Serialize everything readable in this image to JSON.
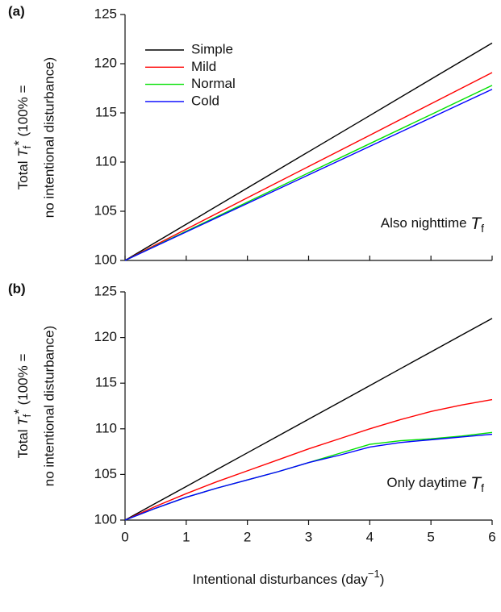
{
  "chart_data": [
    {
      "type": "line",
      "panel": "(a)",
      "ylabel": {
        "line1": [
          "Total ",
          "T",
          "f",
          "*",
          " (100% ="
        ],
        "line2": "no intentional disturbance)"
      },
      "annotation": [
        "Also nighttime ",
        "T",
        "f"
      ],
      "x": [
        0,
        1,
        2,
        3,
        4,
        5,
        6
      ],
      "series": [
        {
          "name": "Simple",
          "color": "#000000",
          "values": [
            100,
            103.68,
            107.37,
            111.05,
            114.73,
            118.42,
            122.1
          ]
        },
        {
          "name": "Mild",
          "color": "#ff0000",
          "values": [
            100,
            103.18,
            106.37,
            109.55,
            112.73,
            115.92,
            119.1
          ]
        },
        {
          "name": "Normal",
          "color": "#00e000",
          "values": [
            100,
            102.97,
            105.93,
            108.9,
            111.87,
            114.83,
            117.8
          ]
        },
        {
          "name": "Cold",
          "color": "#0000ff",
          "values": [
            100,
            102.9,
            105.8,
            108.7,
            111.6,
            114.5,
            117.4
          ]
        }
      ],
      "xlim": [
        0,
        6
      ],
      "xticks": [
        0,
        1,
        2,
        3,
        4,
        5,
        6
      ],
      "xticklabels": false,
      "ylim": [
        100,
        125
      ],
      "yticks": [
        100,
        105,
        110,
        115,
        120,
        125
      ],
      "legend": "top-left"
    },
    {
      "type": "line",
      "panel": "(b)",
      "ylabel": {
        "line1": [
          "Total ",
          "T",
          "f",
          "*",
          " (100% ="
        ],
        "line2": "no intentional disturbance)"
      },
      "annotation": [
        "Only daytime ",
        "T",
        "f"
      ],
      "xlabel": [
        "Intentional disturbances (day",
        "−1",
        ")"
      ],
      "x": [
        0,
        0.5,
        1,
        1.5,
        2,
        2.5,
        3,
        3.5,
        4,
        4.5,
        5,
        5.5,
        6
      ],
      "series": [
        {
          "name": "Simple",
          "color": "#000000",
          "values": [
            100,
            101.84,
            103.68,
            105.53,
            107.37,
            109.21,
            111.05,
            112.89,
            114.73,
            116.58,
            118.42,
            120.26,
            122.1
          ]
        },
        {
          "name": "Mild",
          "color": "#ff0000",
          "values": [
            100,
            101.5,
            102.9,
            104.2,
            105.4,
            106.6,
            107.8,
            108.9,
            110.0,
            111.0,
            111.9,
            112.6,
            113.2
          ]
        },
        {
          "name": "Normal",
          "color": "#00e000",
          "values": [
            100,
            101.3,
            102.5,
            103.5,
            104.4,
            105.3,
            106.3,
            107.3,
            108.3,
            108.7,
            108.9,
            109.2,
            109.6
          ]
        },
        {
          "name": "Cold",
          "color": "#0000ff",
          "values": [
            100,
            101.3,
            102.5,
            103.5,
            104.4,
            105.3,
            106.3,
            107.1,
            108.0,
            108.5,
            108.8,
            109.1,
            109.4
          ]
        }
      ],
      "xlim": [
        0,
        6
      ],
      "xticks": [
        0,
        1,
        2,
        3,
        4,
        5,
        6
      ],
      "xticklabels": true,
      "ylim": [
        100,
        125
      ],
      "yticks": [
        100,
        105,
        110,
        115,
        120,
        125
      ],
      "legend": "none"
    }
  ]
}
